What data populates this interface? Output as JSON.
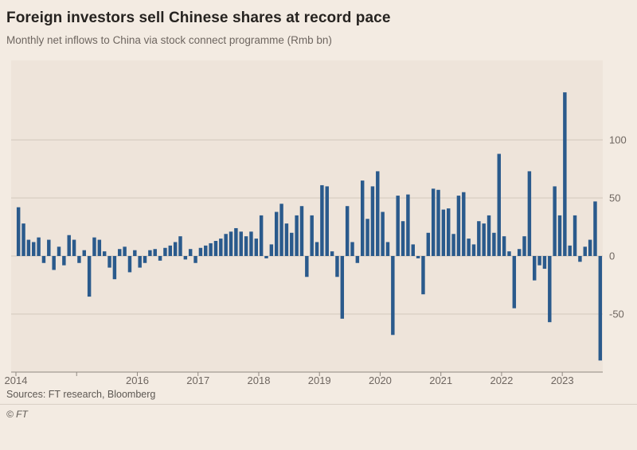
{
  "header": {
    "title": "Foreign investors sell Chinese shares at record pace",
    "subtitle": "Monthly net inflows to China via stock connect programme (Rmb bn)"
  },
  "footer": {
    "sources": "Sources: FT research, Bloomberg",
    "copyright": "© FT"
  },
  "colors": {
    "background": "#f3ebe2",
    "plot_background": "#eee4da",
    "bar": "#2a5a8c",
    "grid": "#d2c7bc",
    "axis": "#8f8880",
    "title_text": "#262320",
    "muted_text": "#6e6660"
  },
  "chart_data": {
    "type": "bar",
    "title": "Foreign investors sell Chinese shares at record pace",
    "subtitle": "Monthly net inflows to China via stock connect programme (Rmb bn)",
    "xlabel": "",
    "ylabel": "Rmb bn",
    "frequency": "monthly",
    "start_month": "2014-01",
    "end_month": "2023-08",
    "start_year": 2014,
    "end_year": 2023,
    "values": [
      42,
      28,
      14,
      12,
      16,
      -6,
      14,
      -12,
      8,
      -8,
      18,
      14,
      -6,
      5,
      -35,
      16,
      14,
      4,
      -10,
      -20,
      6,
      8,
      -14,
      5,
      -10,
      -6,
      5,
      6,
      -4,
      7,
      9,
      12,
      17,
      -3,
      6,
      -6,
      7,
      9,
      11,
      13,
      15,
      19,
      21,
      24,
      21,
      17,
      21,
      15,
      35,
      -2,
      10,
      38,
      45,
      28,
      20,
      35,
      43,
      -18,
      35,
      12,
      61,
      60,
      4,
      -18,
      -54,
      43,
      12,
      -6,
      65,
      32,
      60,
      73,
      38,
      12,
      -68,
      52,
      30,
      53,
      10,
      -2,
      -33,
      20,
      58,
      57,
      40,
      41,
      19,
      52,
      55,
      15,
      10,
      30,
      28,
      35,
      20,
      88,
      17,
      4,
      -45,
      6,
      17,
      73,
      -21,
      -8,
      -11,
      -57,
      60,
      35,
      141,
      9,
      35,
      -5,
      8,
      14,
      47,
      -90
    ],
    "y_ticks": [
      -50,
      0,
      50,
      100
    ],
    "ylim": [
      -100,
      154
    ],
    "x_tick_labels": [
      "2014",
      "2016",
      "2017",
      "2018",
      "2019",
      "2020",
      "2021",
      "2022",
      "2023"
    ],
    "grid": "horizontal",
    "legend_position": "none",
    "y_axis_side": "right"
  }
}
